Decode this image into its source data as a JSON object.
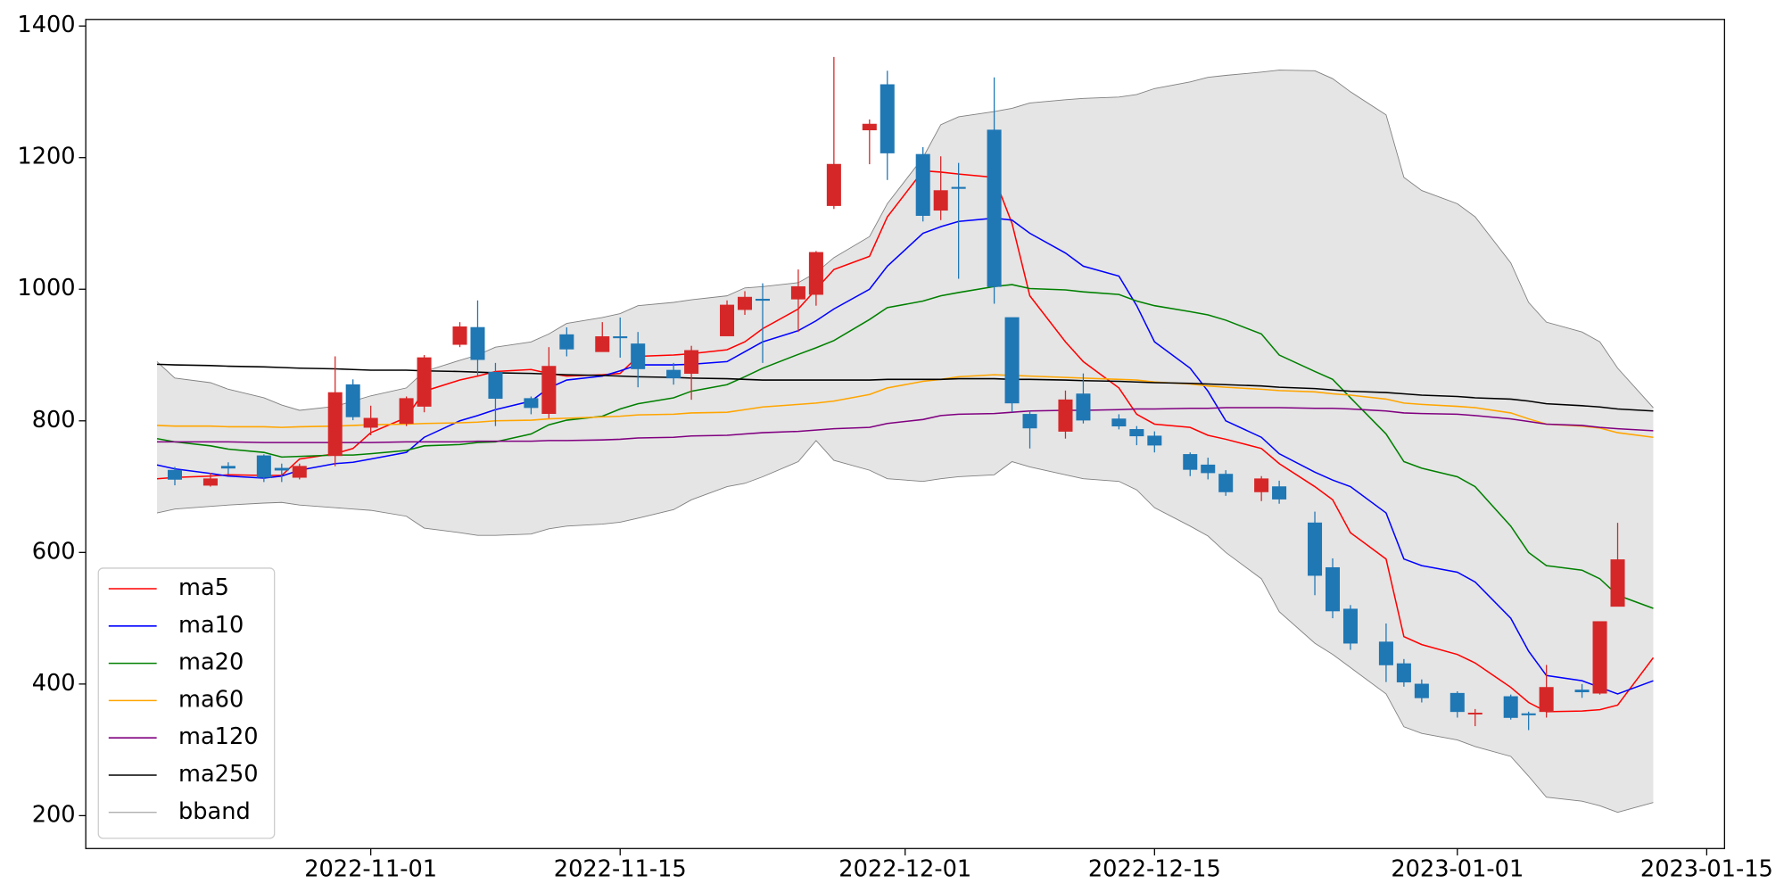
{
  "chart_data": {
    "type": "candlestick",
    "x": [
      "2022-10-20",
      "2022-10-21",
      "2022-10-23",
      "2022-10-24",
      "2022-10-26",
      "2022-10-27",
      "2022-10-28",
      "2022-10-30",
      "2022-10-31",
      "2022-11-01",
      "2022-11-03",
      "2022-11-04",
      "2022-11-06",
      "2022-11-07",
      "2022-11-08",
      "2022-11-10",
      "2022-11-11",
      "2022-11-12",
      "2022-11-14",
      "2022-11-15",
      "2022-11-16",
      "2022-11-18",
      "2022-11-19",
      "2022-11-21",
      "2022-11-22",
      "2022-11-23",
      "2022-11-25",
      "2022-11-26",
      "2022-11-27",
      "2022-11-29",
      "2022-11-30",
      "2022-12-02",
      "2022-12-03",
      "2022-12-04",
      "2022-12-06",
      "2022-12-07",
      "2022-12-08",
      "2022-12-10",
      "2022-12-11",
      "2022-12-13",
      "2022-12-14",
      "2022-12-15",
      "2022-12-17",
      "2022-12-18",
      "2022-12-19",
      "2022-12-21",
      "2022-12-22",
      "2022-12-24",
      "2022-12-25",
      "2022-12-26",
      "2022-12-28",
      "2022-12-29",
      "2022-12-30",
      "2023-01-01",
      "2023-01-02",
      "2023-01-04",
      "2023-01-05",
      "2023-01-06",
      "2023-01-08",
      "2023-01-09",
      "2023-01-10",
      "2023-01-12"
    ],
    "open": [
      null,
      725,
      702,
      731,
      747,
      728,
      714,
      747,
      855,
      790,
      796,
      822,
      916,
      942,
      874,
      834,
      811,
      931,
      905,
      928,
      917,
      877,
      872,
      929,
      969,
      985,
      985,
      992,
      1127,
      1242,
      1311,
      1205,
      1120,
      1155,
      1242,
      957,
      810,
      784,
      841,
      803,
      787,
      777,
      749,
      733,
      719,
      692,
      700,
      645,
      577,
      514,
      464,
      431,
      400,
      386,
      355,
      381,
      355,
      358,
      391,
      386,
      518,
      null
    ],
    "high": [
      null,
      730,
      721,
      737,
      749,
      735,
      735,
      898,
      863,
      823,
      837,
      900,
      950,
      983,
      888,
      837,
      912,
      942,
      950,
      957,
      935,
      888,
      914,
      983,
      997,
      1009,
      1030,
      1058,
      1353,
      1258,
      1332,
      1216,
      1202,
      1192,
      1322,
      957,
      815,
      846,
      872,
      810,
      792,
      784,
      752,
      744,
      725,
      716,
      709,
      662,
      591,
      520,
      492,
      438,
      407,
      389,
      362,
      384,
      358,
      429,
      400,
      495,
      645,
      null
    ],
    "low": [
      null,
      702,
      700,
      719,
      707,
      707,
      711,
      731,
      801,
      778,
      792,
      813,
      912,
      869,
      792,
      810,
      804,
      898,
      905,
      896,
      851,
      855,
      832,
      929,
      961,
      888,
      935,
      975,
      1122,
      1190,
      1166,
      1103,
      1105,
      1016,
      978,
      813,
      758,
      773,
      796,
      787,
      763,
      752,
      716,
      711,
      686,
      678,
      674,
      535,
      500,
      452,
      403,
      396,
      372,
      349,
      336,
      346,
      330,
      349,
      379,
      384,
      518,
      null
    ],
    "close": [
      null,
      711,
      712,
      728,
      714,
      725,
      731,
      843,
      806,
      804,
      834,
      896,
      943,
      893,
      834,
      820,
      883,
      909,
      928,
      926,
      879,
      865,
      907,
      976,
      988,
      983,
      1004,
      1056,
      1190,
      1251,
      1207,
      1112,
      1150,
      1153,
      1004,
      827,
      789,
      832,
      801,
      792,
      777,
      763,
      726,
      721,
      692,
      712,
      681,
      565,
      511,
      462,
      429,
      403,
      379,
      358,
      356,
      349,
      353,
      395,
      388,
      495,
      589,
      null
    ],
    "up_color": "#d62728",
    "down_color": "#1f77b4",
    "series": [
      {
        "name": "ma5",
        "color": "red",
        "values": [
          712,
          714,
          716,
          718,
          717,
          717,
          742,
          750,
          758,
          782,
          805,
          845,
          862,
          868,
          875,
          878,
          872,
          868,
          870,
          872,
          898,
          900,
          902,
          908,
          920,
          940,
          970,
          1000,
          1030,
          1050,
          1110,
          1180,
          1178,
          1175,
          1170,
          1100,
          990,
          920,
          890,
          850,
          810,
          795,
          790,
          778,
          772,
          758,
          735,
          700,
          680,
          630,
          590,
          472,
          460,
          445,
          432,
          395,
          372,
          358,
          359,
          361,
          368,
          440
        ]
      },
      {
        "name": "ma10",
        "color": "blue",
        "values": [
          733,
          727,
          720,
          716,
          713,
          716,
          725,
          735,
          737,
          742,
          752,
          775,
          800,
          808,
          817,
          830,
          850,
          862,
          868,
          876,
          885,
          885,
          886,
          890,
          905,
          920,
          937,
          952,
          970,
          1000,
          1035,
          1085,
          1095,
          1103,
          1108,
          1105,
          1085,
          1055,
          1035,
          1020,
          975,
          920,
          880,
          845,
          800,
          775,
          750,
          722,
          710,
          700,
          660,
          590,
          580,
          570,
          555,
          500,
          450,
          413,
          405,
          395,
          385,
          405
        ]
      },
      {
        "name": "ma20",
        "color": "green",
        "values": [
          773,
          768,
          762,
          757,
          752,
          745,
          746,
          748,
          748,
          750,
          755,
          762,
          764,
          767,
          768,
          780,
          794,
          801,
          807,
          818,
          826,
          835,
          845,
          855,
          867,
          880,
          901,
          911,
          922,
          954,
          972,
          982,
          990,
          995,
          1004,
          1007,
          1001,
          999,
          996,
          992,
          982,
          975,
          966,
          961,
          953,
          932,
          900,
          875,
          863,
          835,
          780,
          738,
          728,
          715,
          700,
          640,
          600,
          580,
          573,
          560,
          535,
          515
        ]
      },
      {
        "name": "ma60",
        "color": "orange",
        "values": [
          793,
          792,
          792,
          791,
          791,
          790,
          791,
          792,
          793,
          794,
          795,
          796,
          797,
          798,
          800,
          801,
          803,
          804,
          806,
          807,
          809,
          810,
          812,
          813,
          817,
          821,
          825,
          827,
          830,
          840,
          850,
          860,
          863,
          867,
          870,
          869,
          868,
          866,
          865,
          863,
          862,
          859,
          856,
          853,
          851,
          848,
          846,
          844,
          841,
          839,
          833,
          827,
          825,
          822,
          820,
          812,
          803,
          795,
          792,
          789,
          782,
          775
        ]
      },
      {
        "name": "ma120",
        "color": "purple",
        "values": [
          768,
          768,
          768,
          768,
          767,
          767,
          767,
          767,
          767,
          767,
          768,
          768,
          768,
          769,
          769,
          769,
          770,
          770,
          771,
          772,
          774,
          775,
          777,
          778,
          780,
          782,
          784,
          786,
          788,
          790,
          796,
          802,
          808,
          810,
          811,
          813,
          815,
          816,
          816,
          817,
          818,
          818,
          819,
          819,
          820,
          820,
          820,
          819,
          819,
          818,
          815,
          812,
          811,
          810,
          808,
          803,
          799,
          795,
          793,
          790,
          788,
          785
        ]
      },
      {
        "name": "ma250",
        "color": "black",
        "values": [
          886,
          885,
          884,
          883,
          882,
          881,
          880,
          879,
          878,
          877,
          877,
          876,
          875,
          874,
          873,
          872,
          871,
          870,
          869,
          868,
          867,
          866,
          865,
          864,
          863,
          862,
          862,
          862,
          862,
          862,
          863,
          863,
          863,
          864,
          864,
          863,
          863,
          862,
          861,
          860,
          859,
          858,
          857,
          856,
          855,
          853,
          851,
          849,
          847,
          845,
          843,
          841,
          839,
          837,
          835,
          833,
          830,
          826,
          823,
          821,
          818,
          815
        ]
      }
    ],
    "band": {
      "name": "bband",
      "color": "gray",
      "fill": "#e5e5e5",
      "upper": [
        890,
        865,
        858,
        848,
        835,
        824,
        816,
        822,
        830,
        838,
        850,
        875,
        892,
        900,
        912,
        920,
        932,
        948,
        957,
        963,
        975,
        980,
        984,
        990,
        1002,
        1004,
        1010,
        1025,
        1048,
        1080,
        1130,
        1200,
        1250,
        1262,
        1270,
        1275,
        1283,
        1288,
        1290,
        1292,
        1296,
        1305,
        1315,
        1322,
        1325,
        1330,
        1333,
        1332,
        1320,
        1300,
        1265,
        1170,
        1150,
        1130,
        1110,
        1040,
        980,
        950,
        935,
        920,
        880,
        820
      ],
      "lower": [
        660,
        666,
        670,
        672,
        675,
        676,
        672,
        668,
        666,
        664,
        655,
        637,
        630,
        626,
        626,
        628,
        636,
        640,
        643,
        646,
        652,
        665,
        680,
        700,
        705,
        715,
        738,
        770,
        740,
        725,
        712,
        708,
        712,
        715,
        718,
        738,
        730,
        718,
        712,
        708,
        695,
        668,
        640,
        625,
        600,
        560,
        510,
        462,
        445,
        425,
        385,
        335,
        325,
        315,
        305,
        290,
        260,
        228,
        222,
        215,
        205,
        220
      ]
    },
    "xlim": [
      "2022-10-16",
      "2023-01-16"
    ],
    "xticks": [
      "2022-11-01",
      "2022-11-15",
      "2022-12-01",
      "2022-12-15",
      "2023-01-01",
      "2023-01-15"
    ],
    "ylim": [
      150,
      1410
    ],
    "yticks": [
      200,
      400,
      600,
      800,
      1000,
      1200,
      1400
    ],
    "legend": "lower left"
  }
}
